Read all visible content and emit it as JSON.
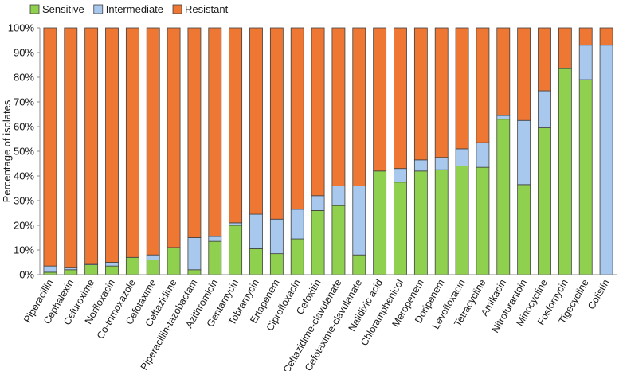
{
  "chart_data": {
    "type": "bar",
    "stacked": true,
    "title": "",
    "xlabel": "",
    "ylabel": "Percentage of isolates",
    "ylim": [
      0,
      100
    ],
    "y_ticks": [
      0,
      10,
      20,
      30,
      40,
      50,
      60,
      70,
      80,
      90,
      100
    ],
    "y_tick_suffix": "%",
    "grid": false,
    "legend_position": "top-left",
    "categories": [
      "Piperacillin",
      "Cephalexin",
      "Cefuroxime",
      "Norfloxacin",
      "Co-trimoxazole",
      "Cefotaxime",
      "Ceftazidime",
      "Piperacillin-tazobactam",
      "Azithromicin",
      "Gentamycin",
      "Tobramycin",
      "Ertapenem",
      "Ciprofloxacin",
      "Cefoxitin",
      "Ceftazidime-clavulanate",
      "Cefotaxime-clavulanate",
      "Nalidixic acid",
      "Chloramphenicol",
      "Meropenem",
      "Doripenem",
      "Levofloxacin",
      "Tetracycline",
      "Amikacin",
      "Nitrofurantoin",
      "Minocycline",
      "Fosfomycin",
      "Tigecycline",
      "Colistin"
    ],
    "series": [
      {
        "name": "Sensitive",
        "color": "#8fd14f",
        "values": [
          1,
          2,
          4,
          3.5,
          7,
          6,
          11,
          2,
          13.5,
          20,
          10.5,
          8.5,
          14.5,
          26,
          28,
          8,
          42,
          37.5,
          42,
          42.5,
          44,
          43.5,
          63,
          36.5,
          59.5,
          83.5,
          79,
          0
        ]
      },
      {
        "name": "Intermediate",
        "color": "#a8c8ee",
        "values": [
          2.5,
          1,
          0.5,
          1.5,
          0,
          2,
          0,
          13,
          2,
          1,
          14,
          14,
          12,
          6,
          8,
          28,
          0,
          5.5,
          4.5,
          5,
          7,
          10,
          1.5,
          26,
          15,
          0,
          14,
          93
        ]
      },
      {
        "name": "Resistant",
        "color": "#ee7734",
        "values": [
          96.5,
          97,
          95.5,
          95,
          93,
          92,
          89,
          85,
          84.5,
          79,
          75.5,
          77.5,
          73.5,
          68,
          64,
          64,
          58,
          57,
          53.5,
          52.5,
          49,
          46.5,
          35.5,
          37.5,
          25.5,
          16.5,
          7,
          7
        ]
      }
    ]
  }
}
